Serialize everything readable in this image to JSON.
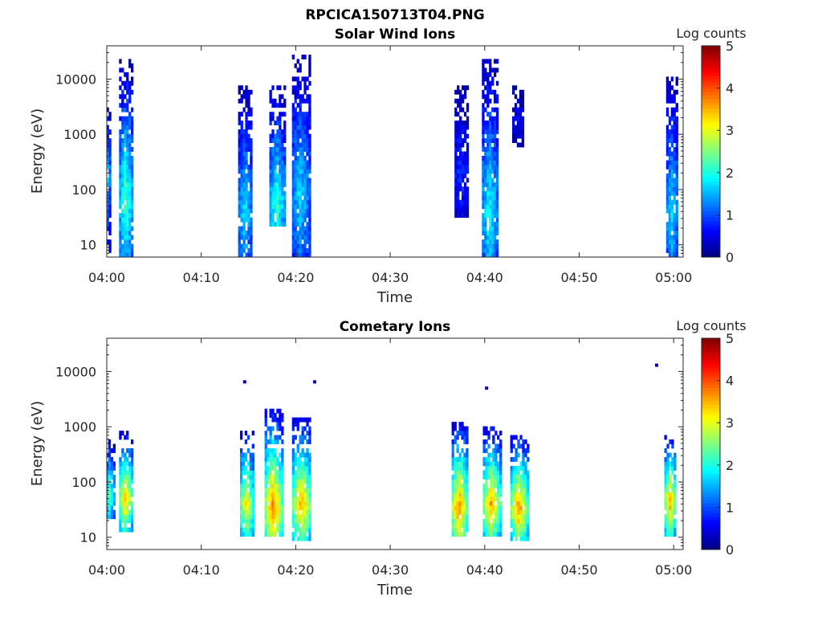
{
  "figure": {
    "title": "RPCICA150713T04.PNG"
  },
  "chart_data": [
    {
      "type": "heatmap",
      "title": "Solar Wind Ions",
      "xlabel": "Time",
      "ylabel": "Energy (eV)",
      "x_ticks": [
        "04:00",
        "04:10",
        "04:20",
        "04:30",
        "04:40",
        "04:50",
        "05:00"
      ],
      "x_range": [
        "04:00",
        "05:01"
      ],
      "y_scale": "log",
      "y_ticks": [
        10,
        100,
        1000,
        10000
      ],
      "y_tick_labels": [
        "10",
        "100",
        "1000",
        "10000"
      ],
      "y_range": [
        6,
        40000
      ],
      "colorbar": {
        "label": "Log counts",
        "range": [
          0,
          5
        ],
        "ticks": [
          "0",
          "1",
          "2",
          "3",
          "4",
          "5"
        ],
        "colormap": "jet"
      },
      "bursts": [
        {
          "time_min": 0.0,
          "width_min": 0.6,
          "e_low": 6,
          "e_high": 3000,
          "e_peak": 150,
          "peak_log_counts": 2.0
        },
        {
          "time_min": 2.0,
          "width_min": 1.4,
          "e_low": 6,
          "e_high": 22000,
          "e_peak": 60,
          "peak_log_counts": 2.3
        },
        {
          "time_min": 14.6,
          "width_min": 1.4,
          "e_low": 6,
          "e_high": 8000,
          "e_peak": 40,
          "peak_log_counts": 1.8
        },
        {
          "time_min": 18.0,
          "width_min": 1.6,
          "e_low": 20,
          "e_high": 8000,
          "e_peak": 50,
          "peak_log_counts": 2.2
        },
        {
          "time_min": 20.5,
          "width_min": 1.8,
          "e_low": 6,
          "e_high": 28000,
          "e_peak": 80,
          "peak_log_counts": 1.8
        },
        {
          "time_min": 37.5,
          "width_min": 1.4,
          "e_low": 30,
          "e_high": 8000,
          "e_peak": 200,
          "peak_log_counts": 0.9
        },
        {
          "time_min": 40.5,
          "width_min": 1.6,
          "e_low": 6,
          "e_high": 22000,
          "e_peak": 40,
          "peak_log_counts": 2.0
        },
        {
          "time_min": 43.5,
          "width_min": 1.2,
          "e_low": 600,
          "e_high": 8000,
          "e_peak": 2000,
          "peak_log_counts": 0.6
        },
        {
          "time_min": 59.8,
          "width_min": 1.2,
          "e_low": 6,
          "e_high": 12000,
          "e_peak": 40,
          "peak_log_counts": 1.8
        }
      ]
    },
    {
      "type": "heatmap",
      "title": "Cometary Ions",
      "xlabel": "Time",
      "ylabel": "Energy (eV)",
      "x_ticks": [
        "04:00",
        "04:10",
        "04:20",
        "04:30",
        "04:40",
        "04:50",
        "05:00"
      ],
      "x_range": [
        "04:00",
        "05:01"
      ],
      "y_scale": "log",
      "y_ticks": [
        10,
        100,
        1000,
        10000
      ],
      "y_tick_labels": [
        "10",
        "100",
        "1000",
        "10000"
      ],
      "y_range": [
        6,
        40000
      ],
      "colorbar": {
        "label": "Log counts",
        "range": [
          0,
          5
        ],
        "ticks": [
          "0",
          "1",
          "2",
          "3",
          "4",
          "5"
        ],
        "colormap": "jet"
      },
      "bursts": [
        {
          "time_min": 0.3,
          "width_min": 0.8,
          "e_low": 20,
          "e_high": 600,
          "e_peak": 60,
          "peak_log_counts": 2.6
        },
        {
          "time_min": 2.0,
          "width_min": 1.4,
          "e_low": 13,
          "e_high": 800,
          "e_peak": 50,
          "peak_log_counts": 3.6
        },
        {
          "time_min": 14.8,
          "width_min": 1.4,
          "e_low": 10,
          "e_high": 900,
          "e_peak": 40,
          "peak_log_counts": 3.3
        },
        {
          "time_min": 17.6,
          "width_min": 1.8,
          "e_low": 10,
          "e_high": 2000,
          "e_peak": 35,
          "peak_log_counts": 3.9
        },
        {
          "time_min": 20.6,
          "width_min": 2.0,
          "e_low": 8,
          "e_high": 1500,
          "e_peak": 40,
          "peak_log_counts": 3.6
        },
        {
          "time_min": 37.3,
          "width_min": 1.6,
          "e_low": 10,
          "e_high": 1200,
          "e_peak": 35,
          "peak_log_counts": 3.9
        },
        {
          "time_min": 40.7,
          "width_min": 1.8,
          "e_low": 10,
          "e_high": 1000,
          "e_peak": 40,
          "peak_log_counts": 3.7
        },
        {
          "time_min": 43.6,
          "width_min": 1.8,
          "e_low": 8,
          "e_high": 700,
          "e_peak": 35,
          "peak_log_counts": 3.8
        },
        {
          "time_min": 59.6,
          "width_min": 1.2,
          "e_low": 10,
          "e_high": 700,
          "e_peak": 45,
          "peak_log_counts": 3.7
        }
      ],
      "sparse_points": [
        {
          "time_min": 14.6,
          "energy": 6500,
          "log_counts": 0.3
        },
        {
          "time_min": 22.0,
          "energy": 6500,
          "log_counts": 0.3
        },
        {
          "time_min": 40.2,
          "energy": 5000,
          "log_counts": 0.3
        },
        {
          "time_min": 58.2,
          "energy": 13000,
          "log_counts": 0.3
        }
      ]
    }
  ]
}
